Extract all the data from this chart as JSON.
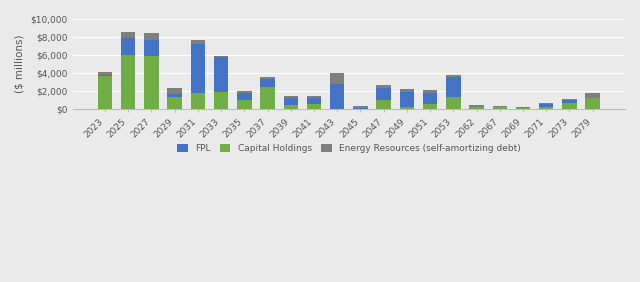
{
  "years": [
    "2023",
    "2025",
    "2027",
    "2029",
    "2031",
    "2033",
    "2035",
    "2037",
    "2039",
    "2041",
    "2043",
    "2045",
    "2047",
    "2049",
    "2051",
    "2053",
    "2062",
    "2067",
    "2069",
    "2071",
    "2073",
    "2079"
  ],
  "fpl": [
    200,
    1800,
    1750,
    350,
    5350,
    3800,
    800,
    900,
    750,
    700,
    2750,
    150,
    1300,
    1700,
    1300,
    2200,
    0,
    0,
    0,
    350,
    400,
    0
  ],
  "capital_holdings": [
    3600,
    6000,
    5900,
    1350,
    1800,
    1900,
    950,
    2400,
    450,
    500,
    0,
    0,
    1000,
    200,
    500,
    1300,
    250,
    200,
    100,
    200,
    600,
    1250
  ],
  "energy_resources": [
    300,
    700,
    800,
    600,
    500,
    200,
    200,
    200,
    200,
    200,
    1200,
    200,
    400,
    300,
    300,
    200,
    150,
    150,
    150,
    100,
    100,
    550
  ],
  "fpl_color": "#4472c4",
  "capital_color": "#70ad47",
  "energy_color": "#7f7f7f",
  "ylabel": "($ millions)",
  "ylim": [
    0,
    10000
  ],
  "ytick_labels": [
    "$0",
    "$2,000",
    "$4,000",
    "$6,000",
    "$8,000",
    "$10,000"
  ],
  "ytick_vals": [
    0,
    2000,
    4000,
    6000,
    8000,
    10000
  ],
  "legend_fpl": "FPL",
  "legend_cap": "Capital Holdings",
  "legend_er": "Energy Resources (self-amortizing debt)",
  "bg_color": "#eaeaea",
  "label_fontsize": 7.5,
  "tick_fontsize": 6.5
}
